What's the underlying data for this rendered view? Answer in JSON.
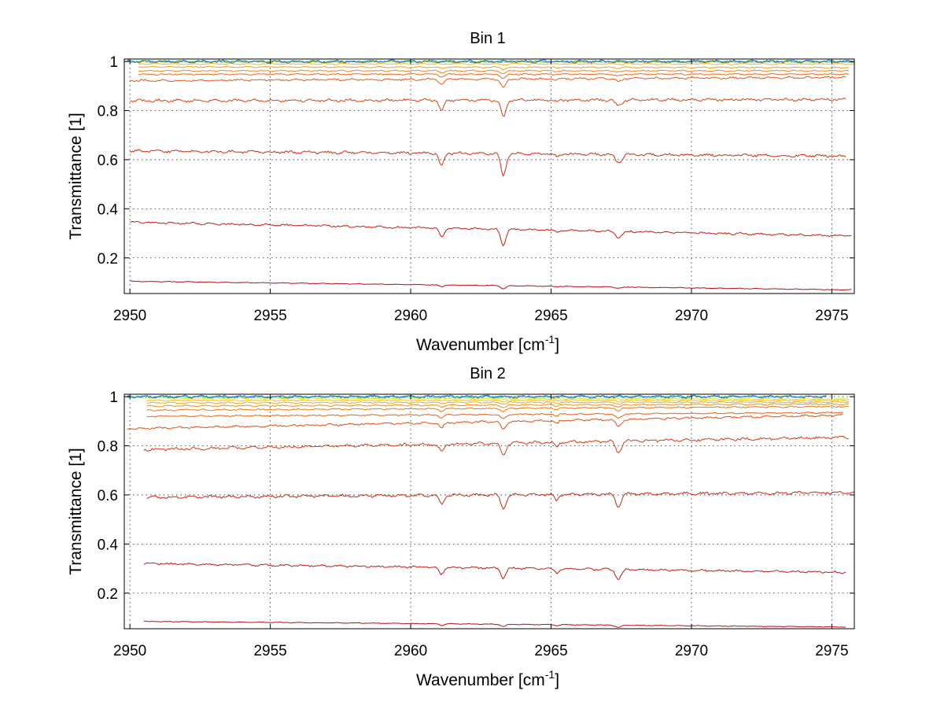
{
  "chart_data": [
    {
      "type": "line",
      "title": "Bin 1",
      "xlabel": "Wavenumber [cm",
      "xlabel_sup": "-1",
      "xlabel_end": "]",
      "ylabel": "Transmittance [1]",
      "xlim": [
        2949.8,
        2975.8
      ],
      "ylim": [
        0.055,
        1.01
      ],
      "xticks": [
        2950,
        2955,
        2960,
        2965,
        2970,
        2975
      ],
      "yticks": [
        0.2,
        0.4,
        0.6,
        0.8,
        1
      ],
      "grid": true,
      "absorption_lines": [
        {
          "x": 2961.1,
          "width": 0.08,
          "weight": 0.6
        },
        {
          "x": 2963.3,
          "width": 0.09,
          "weight": 1.0
        },
        {
          "x": 2967.4,
          "width": 0.12,
          "weight": 0.35
        },
        {
          "x": 2965.2,
          "width": 0.06,
          "weight": 0.12
        }
      ],
      "series": [
        {
          "color": "#1f6fd6",
          "x_start": 2949.9,
          "x_end": 2975.8,
          "y_start": 1.0,
          "y_end": 1.0,
          "depth": 0.0,
          "noise": 0.004
        },
        {
          "color": "#2bb673",
          "x_start": 2949.9,
          "x_end": 2975.8,
          "y_start": 1.0,
          "y_end": 1.0,
          "depth": 0.0,
          "noise": 0.003
        },
        {
          "color": "#d9e21a",
          "x_start": 2950.1,
          "x_end": 2975.8,
          "y_start": 0.998,
          "y_end": 0.997,
          "depth": 0.002,
          "noise": 0.002
        },
        {
          "color": "#f2b71b",
          "x_start": 2950.3,
          "x_end": 2975.8,
          "y_start": 0.99,
          "y_end": 0.99,
          "depth": 0.004,
          "noise": 0.002
        },
        {
          "color": "#f0a020",
          "x_start": 2950.3,
          "x_end": 2975.6,
          "y_start": 0.978,
          "y_end": 0.975,
          "depth": 0.008,
          "noise": 0.002
        },
        {
          "color": "#ec8a1c",
          "x_start": 2950.3,
          "x_end": 2975.6,
          "y_start": 0.962,
          "y_end": 0.962,
          "depth": 0.012,
          "noise": 0.002
        },
        {
          "color": "#e86c18",
          "x_start": 2950.3,
          "x_end": 2975.6,
          "y_start": 0.948,
          "y_end": 0.948,
          "depth": 0.018,
          "noise": 0.002
        },
        {
          "color": "#e05a18",
          "x_start": 2950.0,
          "x_end": 2975.5,
          "y_start": 0.922,
          "y_end": 0.935,
          "depth": 0.035,
          "noise": 0.003
        },
        {
          "color": "#d64416",
          "x_start": 2950.0,
          "x_end": 2975.5,
          "y_start": 0.84,
          "y_end": 0.845,
          "depth": 0.07,
          "noise": 0.004
        },
        {
          "color": "#cc2e14",
          "x_start": 2950.0,
          "x_end": 2975.5,
          "y_start": 0.635,
          "y_end": 0.615,
          "depth": 0.09,
          "noise": 0.004
        },
        {
          "color": "#c41e12",
          "x_start": 2950.0,
          "x_end": 2975.7,
          "y_start": 0.345,
          "y_end": 0.29,
          "depth": 0.065,
          "noise": 0.003
        },
        {
          "color": "#b8100e",
          "x_start": 2950.0,
          "x_end": 2975.7,
          "y_start": 0.105,
          "y_end": 0.07,
          "depth": 0.012,
          "noise": 0.001
        }
      ]
    },
    {
      "type": "line",
      "title": "Bin 2",
      "xlabel": "Wavenumber [cm",
      "xlabel_sup": "-1",
      "xlabel_end": "]",
      "ylabel": "Transmittance [1]",
      "xlim": [
        2949.8,
        2975.8
      ],
      "ylim": [
        0.055,
        1.01
      ],
      "xticks": [
        2950,
        2955,
        2960,
        2965,
        2970,
        2975
      ],
      "yticks": [
        0.2,
        0.4,
        0.6,
        0.8,
        1
      ],
      "grid": true,
      "absorption_lines": [
        {
          "x": 2961.1,
          "width": 0.08,
          "weight": 0.55
        },
        {
          "x": 2963.3,
          "width": 0.09,
          "weight": 0.8
        },
        {
          "x": 2965.2,
          "width": 0.07,
          "weight": 0.35
        },
        {
          "x": 2967.4,
          "width": 0.1,
          "weight": 0.75
        }
      ],
      "series": [
        {
          "color": "#1f6fd6",
          "x_start": 2949.9,
          "x_end": 2974.8,
          "y_start": 1.0,
          "y_end": 1.0,
          "depth": 0.0,
          "noise": 0.004
        },
        {
          "color": "#2bb673",
          "x_start": 2949.9,
          "x_end": 2974.8,
          "y_start": 1.0,
          "y_end": 1.0,
          "depth": 0.0,
          "noise": 0.003
        },
        {
          "color": "#d9e21a",
          "x_start": 2950.2,
          "x_end": 2975.6,
          "y_start": 0.995,
          "y_end": 0.99,
          "depth": 0.003,
          "noise": 0.002
        },
        {
          "color": "#f2c41b",
          "x_start": 2950.6,
          "x_end": 2975.6,
          "y_start": 0.985,
          "y_end": 0.985,
          "depth": 0.005,
          "noise": 0.002
        },
        {
          "color": "#f0a820",
          "x_start": 2950.6,
          "x_end": 2975.6,
          "y_start": 0.975,
          "y_end": 0.978,
          "depth": 0.008,
          "noise": 0.002
        },
        {
          "color": "#ec901c",
          "x_start": 2950.6,
          "x_end": 2975.6,
          "y_start": 0.962,
          "y_end": 0.97,
          "depth": 0.012,
          "noise": 0.002
        },
        {
          "color": "#e87818",
          "x_start": 2950.6,
          "x_end": 2975.6,
          "y_start": 0.945,
          "y_end": 0.96,
          "depth": 0.018,
          "noise": 0.002
        },
        {
          "color": "#e26418",
          "x_start": 2950.6,
          "x_end": 2975.4,
          "y_start": 0.92,
          "y_end": 0.935,
          "depth": 0.025,
          "noise": 0.002
        },
        {
          "color": "#dc5016",
          "x_start": 2949.9,
          "x_end": 2975.4,
          "y_start": 0.87,
          "y_end": 0.925,
          "depth": 0.04,
          "noise": 0.003
        },
        {
          "color": "#d23c16",
          "x_start": 2950.5,
          "x_end": 2975.6,
          "y_start": 0.785,
          "y_end": 0.835,
          "depth": 0.06,
          "noise": 0.004
        },
        {
          "color": "#ca2a14",
          "x_start": 2950.6,
          "x_end": 2975.8,
          "y_start": 0.59,
          "y_end": 0.61,
          "depth": 0.07,
          "noise": 0.004
        },
        {
          "color": "#c01c12",
          "x_start": 2950.5,
          "x_end": 2975.5,
          "y_start": 0.32,
          "y_end": 0.285,
          "depth": 0.05,
          "noise": 0.003
        },
        {
          "color": "#b4100e",
          "x_start": 2950.5,
          "x_end": 2975.5,
          "y_start": 0.085,
          "y_end": 0.062,
          "depth": 0.012,
          "noise": 0.001
        }
      ]
    }
  ]
}
